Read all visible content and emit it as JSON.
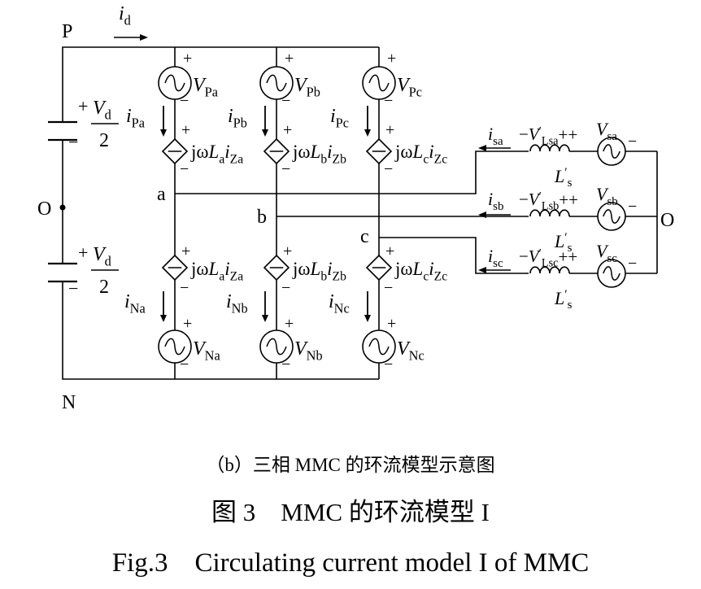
{
  "nodes": {
    "p": "P",
    "n": "N",
    "o_left": "O",
    "o_right": "O",
    "a": "a",
    "b": "b",
    "c": "c"
  },
  "dc_current": "i",
  "dc_current_sub": "d",
  "capacitor": {
    "plus": "+",
    "minus": "−",
    "v": "V",
    "v_sub": "d",
    "den": "2"
  },
  "upper_sources": [
    {
      "v": "V",
      "sub": "Pa",
      "plus": "+",
      "minus": "−"
    },
    {
      "v": "V",
      "sub": "Pb",
      "plus": "+",
      "minus": "−"
    },
    {
      "v": "V",
      "sub": "Pc",
      "plus": "+",
      "minus": "−"
    }
  ],
  "lower_sources": [
    {
      "v": "V",
      "sub": "Na",
      "plus": "+",
      "minus": "−"
    },
    {
      "v": "V",
      "sub": "Nb",
      "plus": "+",
      "minus": "−"
    },
    {
      "v": "V",
      "sub": "Nc",
      "plus": "+",
      "minus": "−"
    }
  ],
  "upper_currents": [
    {
      "i": "i",
      "sub": "Pa"
    },
    {
      "i": "i",
      "sub": "Pb"
    },
    {
      "i": "i",
      "sub": "Pc"
    }
  ],
  "lower_currents": [
    {
      "i": "i",
      "sub": "Na"
    },
    {
      "i": "i",
      "sub": "Nb"
    },
    {
      "i": "i",
      "sub": "Nc"
    }
  ],
  "dep_sources": [
    {
      "jw": "jω",
      "L": "L",
      "L_sub": "a",
      "i": "i",
      "i_sub": "Za"
    },
    {
      "jw": "jω",
      "L": "L",
      "L_sub": "b",
      "i": "i",
      "i_sub": "Zb"
    },
    {
      "jw": "jω",
      "L": "L",
      "L_sub": "c",
      "i": "i",
      "i_sub": "Zc"
    }
  ],
  "ac_phases": [
    {
      "i_sub": "sa",
      "vl_sub": "Lsa",
      "vs_sub": "sa"
    },
    {
      "i_sub": "sb",
      "vl_sub": "Lsb",
      "vs_sub": "sb"
    },
    {
      "i_sub": "sc",
      "vl_sub": "Lsc",
      "vs_sub": "sc"
    }
  ],
  "ac_symbols": {
    "i": "i",
    "V": "V",
    "prime": "′",
    "L": "L",
    "L_sub": "s",
    "plus": "+",
    "minus": "−",
    "double_plus": "++"
  },
  "captions": {
    "sub": "（b）三相 MMC 的环流模型示意图",
    "cn": "图 3　MMC 的环流模型 I",
    "en": "Fig.3　Circulating current model I of MMC"
  }
}
